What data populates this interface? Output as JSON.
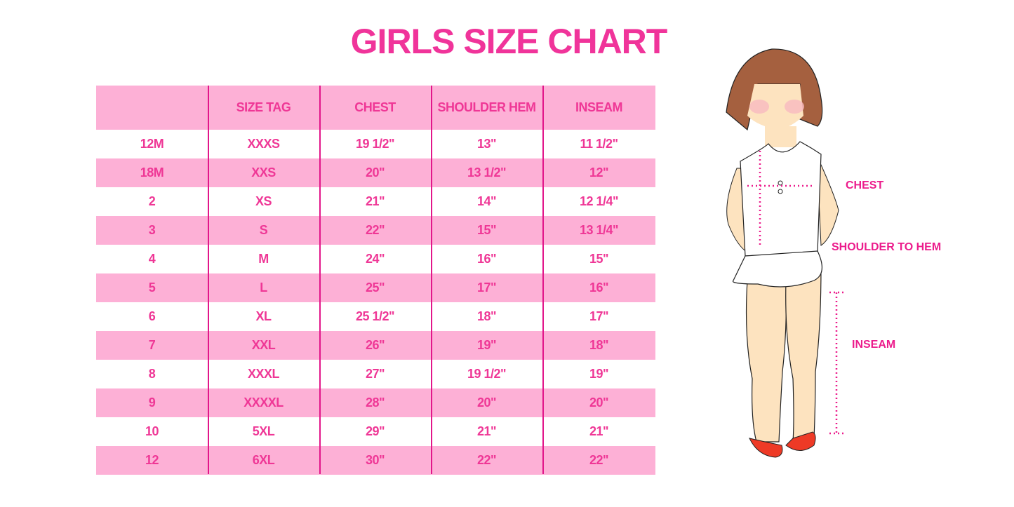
{
  "title": "GIRLS SIZE CHART",
  "table": {
    "headers": [
      "",
      "SIZE TAG",
      "CHEST",
      "SHOULDER HEM",
      "INSEAM"
    ],
    "rows": [
      [
        "12M",
        "XXXS",
        "19 1/2\"",
        "13\"",
        "11 1/2\""
      ],
      [
        "18M",
        "XXS",
        "20\"",
        "13 1/2\"",
        "12\""
      ],
      [
        "2",
        "XS",
        "21\"",
        "14\"",
        "12 1/4\""
      ],
      [
        "3",
        "S",
        "22\"",
        "15\"",
        "13 1/4\""
      ],
      [
        "4",
        "M",
        "24\"",
        "16\"",
        "15\""
      ],
      [
        "5",
        "L",
        "25\"",
        "17\"",
        "16\""
      ],
      [
        "6",
        "XL",
        "25 1/2\"",
        "18\"",
        "17\""
      ],
      [
        "7",
        "XXL",
        "26\"",
        "19\"",
        "18\""
      ],
      [
        "8",
        "XXXL",
        "27\"",
        "19 1/2\"",
        "19\""
      ],
      [
        "9",
        "XXXXL",
        "28\"",
        "20\"",
        "20\""
      ],
      [
        "10",
        "5XL",
        "29\"",
        "21\"",
        "21\""
      ],
      [
        "12",
        "6XL",
        "30\"",
        "22\"",
        "22\""
      ]
    ]
  },
  "figure": {
    "labels": {
      "chest": "CHEST",
      "shoulder": "SHOULDER TO HEM",
      "inseam": "INSEAM"
    }
  },
  "colors": {
    "accent": "#f0349a",
    "row_pink": "#fdb0d6",
    "divider": "#e2168a"
  }
}
